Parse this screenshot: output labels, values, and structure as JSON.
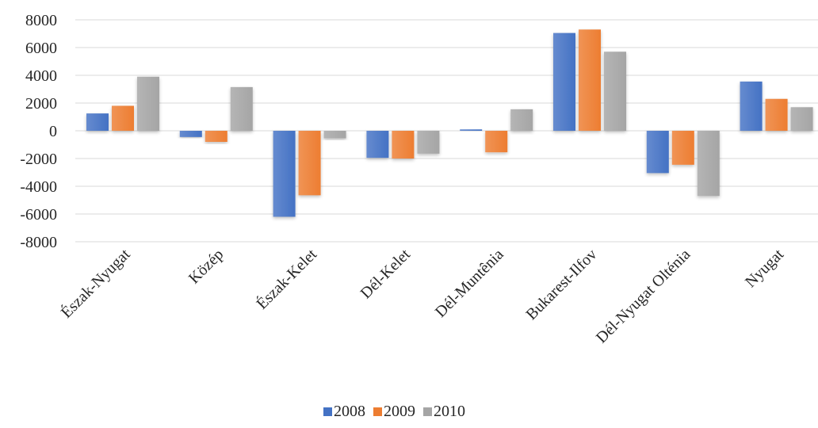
{
  "chart_data": {
    "type": "bar",
    "categories": [
      "Észak-Nyugat",
      "Közép",
      "Észak-Kelet",
      "Dél-Kelet",
      "Dél-Muntênia",
      "Bukarest-Ilfov",
      "Dél-Nyugat Olténia",
      "Nyugat"
    ],
    "series": [
      {
        "name": "2008",
        "color": "#4472C4",
        "values": [
          1250,
          -450,
          -6200,
          -1950,
          100,
          7050,
          -3050,
          3550
        ]
      },
      {
        "name": "2009",
        "color": "#ED7D31",
        "values": [
          1800,
          -800,
          -4650,
          -2000,
          -1550,
          7300,
          -2450,
          2300
        ]
      },
      {
        "name": "2010",
        "color": "#A5A5A5",
        "values": [
          3900,
          3150,
          -550,
          -1650,
          1550,
          5700,
          -4700,
          1700
        ]
      }
    ],
    "yticks": [
      "8000",
      "6000",
      "4000",
      "2000",
      "0",
      "-2000",
      "-4000",
      "-6000",
      "-8000"
    ],
    "ylim": [
      -8000,
      8000
    ],
    "grid": true,
    "legend_position": "bottom"
  }
}
